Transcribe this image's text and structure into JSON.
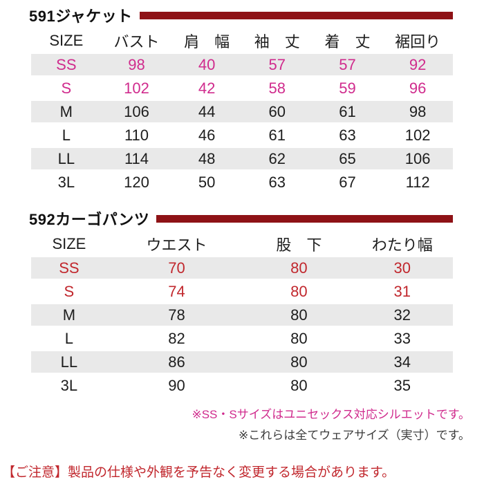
{
  "colors": {
    "title_bar": "#8e1216",
    "magenta_accent": "#d02b8d",
    "crimson_accent": "#c1272d",
    "row_stripe": "#e9e9e9"
  },
  "jacket": {
    "title": "591ジャケット",
    "columns": [
      "SIZE",
      "バスト",
      "肩　幅",
      "袖　丈",
      "着　丈",
      "裾回り"
    ],
    "rows": [
      {
        "size": "SS",
        "values": [
          "98",
          "40",
          "57",
          "57",
          "92"
        ],
        "accent": "magenta",
        "striped": true
      },
      {
        "size": "S",
        "values": [
          "102",
          "42",
          "58",
          "59",
          "96"
        ],
        "accent": "magenta",
        "striped": false
      },
      {
        "size": "M",
        "values": [
          "106",
          "44",
          "60",
          "61",
          "98"
        ],
        "accent": null,
        "striped": true
      },
      {
        "size": "L",
        "values": [
          "110",
          "46",
          "61",
          "63",
          "102"
        ],
        "accent": null,
        "striped": false
      },
      {
        "size": "LL",
        "values": [
          "114",
          "48",
          "62",
          "65",
          "106"
        ],
        "accent": null,
        "striped": true
      },
      {
        "size": "3L",
        "values": [
          "120",
          "50",
          "63",
          "67",
          "112"
        ],
        "accent": null,
        "striped": false
      }
    ]
  },
  "pants": {
    "title": "592カーゴパンツ",
    "columns": [
      "SIZE",
      "ウエスト",
      "股　下",
      "わたり幅"
    ],
    "rows": [
      {
        "size": "SS",
        "values": [
          "70",
          "80",
          "30"
        ],
        "accent": "crimson",
        "striped": true
      },
      {
        "size": "S",
        "values": [
          "74",
          "80",
          "31"
        ],
        "accent": "crimson",
        "striped": false
      },
      {
        "size": "M",
        "values": [
          "78",
          "80",
          "32"
        ],
        "accent": null,
        "striped": true
      },
      {
        "size": "L",
        "values": [
          "82",
          "80",
          "33"
        ],
        "accent": null,
        "striped": false
      },
      {
        "size": "LL",
        "values": [
          "86",
          "80",
          "34"
        ],
        "accent": null,
        "striped": true
      },
      {
        "size": "3L",
        "values": [
          "90",
          "80",
          "35"
        ],
        "accent": null,
        "striped": false
      }
    ]
  },
  "notes": {
    "unisex": "※SS・Sサイズはユニセックス対応シルエットです。",
    "wear_size": "※これらは全てウェアサイズ（実寸）です。"
  },
  "caution": {
    "label": "【ご注意】",
    "text": "製品の仕様や外観を予告なく変更する場合があります。"
  }
}
